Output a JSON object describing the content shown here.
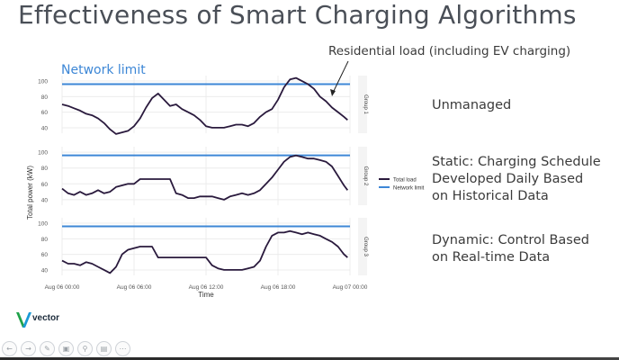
{
  "slide": {
    "title": "Effectiveness of Smart Charging Algorithms",
    "callout": "Residential load (including EV charging)",
    "network_limit_label": "Network limit",
    "descriptions": [
      [
        "Unmanaged"
      ],
      [
        "Static: Charging Schedule",
        "Developed Daily Based",
        "on Historical Data"
      ],
      [
        "Dynamic: Control Based",
        "on Real-time Data"
      ]
    ],
    "logo_text": "vector",
    "toolbar_icons": [
      "prev-icon",
      "next-icon",
      "pen-icon",
      "slides-icon",
      "zoom-icon",
      "subtitles-icon",
      "more-icon"
    ]
  },
  "colors": {
    "total_load": "#2a1a3d",
    "network_limit": "#3d87d6",
    "grid": "#ececec",
    "title": "#4a4f57"
  },
  "chart_data": {
    "type": "line",
    "ylabel": "Total power (kW)",
    "xlabel": "Time",
    "x_ticks": [
      "Aug 06 00:00",
      "Aug 06 06:00",
      "Aug 06 12:00",
      "Aug 06 18:00",
      "Aug 07 00:00"
    ],
    "x_range_hours": [
      0,
      24
    ],
    "legend": [
      "Total load",
      "Network limit"
    ],
    "legend_position": "right",
    "grid": true,
    "panels": [
      {
        "strip": "Group 1",
        "yticks": [
          40,
          60,
          80,
          100
        ],
        "ylim": [
          33,
          107
        ],
        "network_limit": 96,
        "x": [
          0,
          0.5,
          1,
          1.5,
          2,
          2.5,
          3,
          3.5,
          4,
          4.5,
          5,
          5.5,
          6,
          6.5,
          7,
          7.5,
          8,
          8.5,
          9,
          9.5,
          10,
          10.5,
          11,
          11.5,
          12,
          12.5,
          13,
          13.5,
          14,
          14.5,
          15,
          15.5,
          16,
          16.5,
          17,
          17.5,
          18,
          18.5,
          19,
          19.5,
          20,
          20.5,
          21,
          21.5,
          22,
          22.5,
          23,
          23.5,
          23.8
        ],
        "values": [
          70,
          68,
          65,
          62,
          58,
          56,
          52,
          46,
          38,
          32,
          34,
          36,
          42,
          52,
          66,
          78,
          84,
          76,
          68,
          70,
          64,
          60,
          56,
          50,
          42,
          40,
          40,
          40,
          42,
          44,
          44,
          42,
          46,
          54,
          60,
          64,
          76,
          92,
          102,
          104,
          100,
          96,
          90,
          80,
          74,
          66,
          60,
          54,
          50
        ]
      },
      {
        "strip": "Group 2",
        "yticks": [
          40,
          60,
          80,
          100
        ],
        "ylim": [
          33,
          107
        ],
        "network_limit": 96,
        "x": [
          0,
          0.5,
          1,
          1.5,
          2,
          2.5,
          3,
          3.5,
          4,
          4.5,
          5,
          5.5,
          6,
          6.5,
          7,
          7.5,
          8,
          8.5,
          9,
          9.5,
          10,
          10.5,
          11,
          11.5,
          12,
          12.5,
          13,
          13.5,
          14,
          14.5,
          15,
          15.5,
          16,
          16.5,
          17,
          17.5,
          18,
          18.5,
          19,
          19.5,
          20,
          20.5,
          21,
          21.5,
          22,
          22.5,
          23,
          23.5,
          23.8
        ],
        "values": [
          54,
          48,
          46,
          50,
          46,
          48,
          52,
          48,
          50,
          56,
          58,
          60,
          60,
          66,
          66,
          66,
          66,
          66,
          66,
          48,
          46,
          42,
          42,
          44,
          44,
          44,
          42,
          40,
          44,
          46,
          48,
          46,
          48,
          52,
          60,
          68,
          78,
          88,
          94,
          96,
          94,
          92,
          92,
          90,
          88,
          82,
          70,
          58,
          52
        ]
      },
      {
        "strip": "Group 3",
        "yticks": [
          40,
          60,
          80,
          100
        ],
        "ylim": [
          33,
          107
        ],
        "network_limit": 96,
        "x": [
          0,
          0.5,
          1,
          1.5,
          2,
          2.5,
          3,
          3.5,
          4,
          4.5,
          5,
          5.5,
          6,
          6.5,
          7,
          7.5,
          8,
          8.5,
          9,
          9.5,
          10,
          10.5,
          11,
          11.5,
          12,
          12.5,
          13,
          13.5,
          14,
          14.5,
          15,
          15.5,
          16,
          16.5,
          17,
          17.5,
          18,
          18.5,
          19,
          19.5,
          20,
          20.5,
          21,
          21.5,
          22,
          22.5,
          23,
          23.5,
          23.8
        ],
        "values": [
          52,
          48,
          48,
          46,
          50,
          48,
          44,
          40,
          36,
          44,
          60,
          66,
          68,
          70,
          70,
          70,
          56,
          56,
          56,
          56,
          56,
          56,
          56,
          56,
          56,
          46,
          42,
          40,
          40,
          40,
          40,
          42,
          44,
          52,
          70,
          84,
          88,
          88,
          90,
          88,
          86,
          88,
          86,
          84,
          80,
          76,
          70,
          60,
          56
        ]
      }
    ]
  }
}
